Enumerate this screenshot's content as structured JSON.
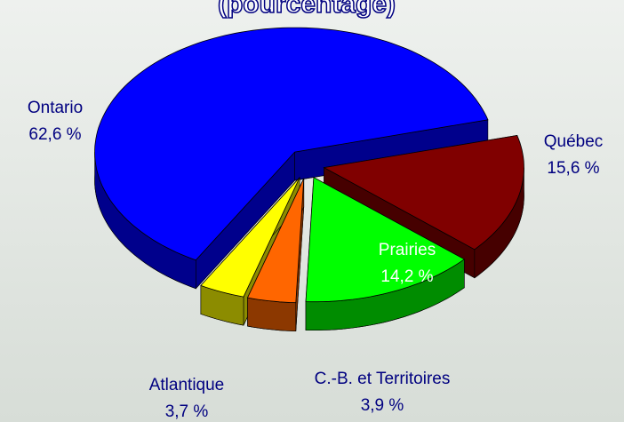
{
  "chart_data": {
    "type": "pie3d",
    "title": "(pourcentage)",
    "categories": [
      "Québec",
      "Prairies",
      "C.-B. et Territoires",
      "Atlantique",
      "Ontario"
    ],
    "values": [
      15.6,
      14.2,
      3.9,
      3.7,
      62.6
    ],
    "value_labels": [
      "15,6 %",
      "14,2 %",
      "3,9 %",
      "3,7 %",
      "62,6 %"
    ],
    "colors": [
      "#800000",
      "#00ff00",
      "#ff6600",
      "#ffff00",
      "#0000ff"
    ]
  }
}
